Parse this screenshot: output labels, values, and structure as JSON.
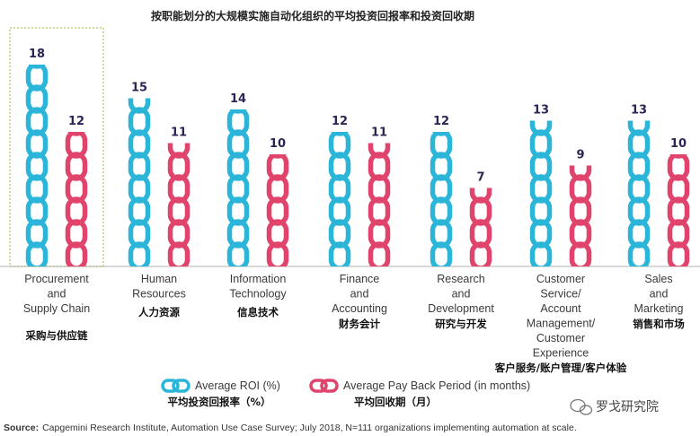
{
  "chart_data": {
    "type": "bar",
    "title": "按职能划分的大规模实施自动化组织的平均投资回报率和投资回收期",
    "categories": [
      {
        "en": [
          "Procurement",
          "and",
          "Supply Chain"
        ],
        "cn": "采购与供应链"
      },
      {
        "en": [
          "Human",
          "Resources"
        ],
        "cn": "人力资源"
      },
      {
        "en": [
          "Information",
          "Technology"
        ],
        "cn": "信息技术"
      },
      {
        "en": [
          "Finance",
          "and",
          "Accounting"
        ],
        "cn": "财务会计"
      },
      {
        "en": [
          "Research",
          "and",
          "Development"
        ],
        "cn": "研究与开发"
      },
      {
        "en": [
          "Customer",
          "Service/",
          "Account",
          "Management/",
          "Customer",
          "Experience"
        ],
        "cn": "客户服务/账户管理/客户体验"
      },
      {
        "en": [
          "Sales",
          "and",
          "Marketing"
        ],
        "cn": "销售和市场"
      }
    ],
    "series": [
      {
        "name": "Average ROI (%)",
        "name_cn": "平均投资回报率（%）",
        "values": [
          18,
          15,
          14,
          12,
          12,
          13,
          13
        ]
      },
      {
        "name": "Average Pay Back Period (in months)",
        "name_cn": "平均回收期（月）",
        "values": [
          12,
          11,
          10,
          11,
          7,
          9,
          10
        ]
      }
    ],
    "colors": [
      "#2bb5d8",
      "#e0436b"
    ],
    "highlight_category_index": 0,
    "ylim": [
      0,
      18
    ],
    "legend": "bottom"
  },
  "source": {
    "label": "Source:",
    "text": "Capgemini Research Institute, Automation Use Case Survey; July 2018, N=111 organizations implementing automation at scale."
  },
  "watermark": "罗戈研究院",
  "icons": {
    "legend_chain": "chain-link-icon",
    "watermark": "wechat-icon"
  }
}
